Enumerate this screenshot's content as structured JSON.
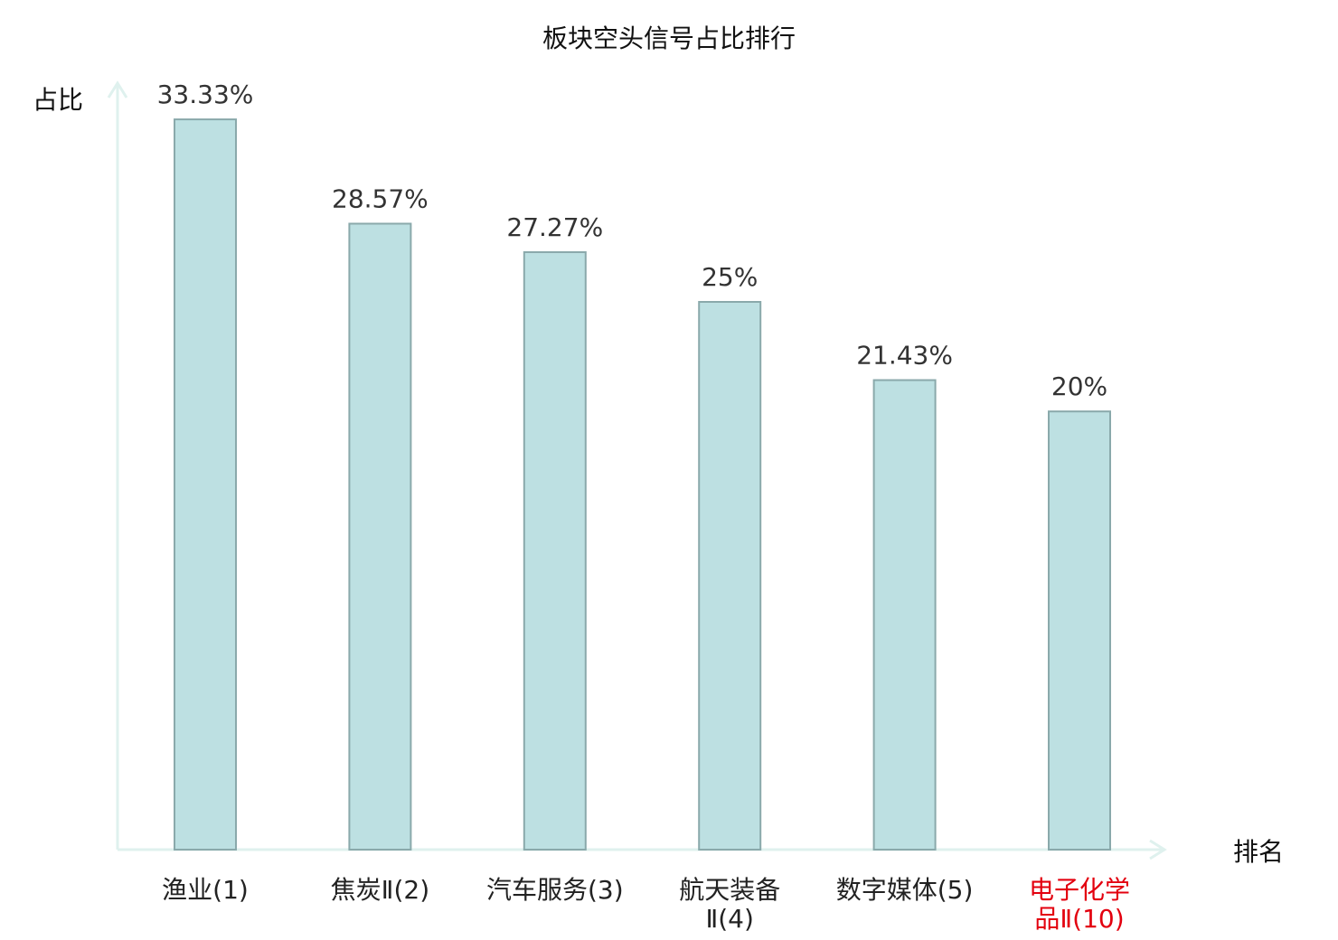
{
  "chart_data": {
    "type": "bar",
    "title": "板块空头信号占比排行",
    "xlabel": "排名",
    "ylabel": "占比",
    "categories": [
      {
        "lines": [
          "渔业(1)"
        ],
        "highlight": false
      },
      {
        "lines": [
          "焦炭Ⅱ(2)"
        ],
        "highlight": false
      },
      {
        "lines": [
          "汽车服务(3)"
        ],
        "highlight": false
      },
      {
        "lines": [
          "航天装备",
          "Ⅱ(4)"
        ],
        "highlight": false
      },
      {
        "lines": [
          "数字媒体(5)"
        ],
        "highlight": false
      },
      {
        "lines": [
          "电子化学",
          "品Ⅱ(10)"
        ],
        "highlight": true
      }
    ],
    "values": [
      33.33,
      28.57,
      27.27,
      25,
      21.43,
      20
    ],
    "data_labels": [
      "33.33%",
      "28.57%",
      "27.27%",
      "25%",
      "21.43%",
      "20%"
    ],
    "ylim": [
      0,
      35
    ],
    "grid": false,
    "colors": {
      "bar_fill": "#bde0e2",
      "bar_stroke": "#8aa9ab",
      "axis": "#dff1ee",
      "tick_text": "#222222",
      "highlight_text": "#e3000f"
    }
  }
}
